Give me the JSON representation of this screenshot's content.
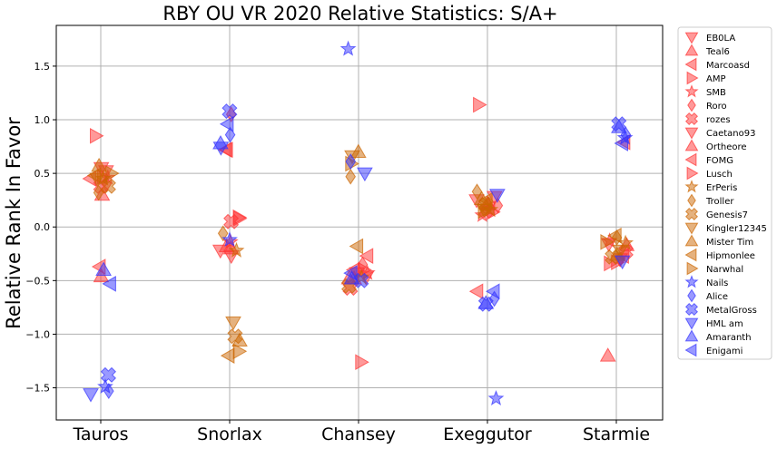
{
  "chart_data": {
    "type": "scatter",
    "title": "RBY OU VR 2020 Relative Statistics: S/A+",
    "xlabel": "",
    "ylabel": "Relative Rank In Favor",
    "categories": [
      "Tauros",
      "Snorlax",
      "Chansey",
      "Exeggutor",
      "Starmie"
    ],
    "ylim": [
      -1.8,
      1.88
    ],
    "yticks": [
      -1.5,
      -1.0,
      -0.5,
      0.0,
      0.5,
      1.0,
      1.5
    ],
    "ytick_labels": [
      "−1.5",
      "−1.0",
      "−0.5",
      "0.0",
      "0.5",
      "1.0",
      "1.5"
    ],
    "grid": true,
    "legend_position": "outside-right",
    "colors": {
      "red": "#ff3333",
      "orange": "#cc6600",
      "blue": "#3333ff"
    },
    "series": [
      {
        "name": "EB0LA",
        "color": "red",
        "marker": "tri-down",
        "values": [
          0.52,
          -0.22,
          -0.43,
          0.28,
          -0.16
        ]
      },
      {
        "name": "Teal6",
        "color": "red",
        "marker": "tri-up",
        "values": [
          0.3,
          -0.18,
          -0.48,
          0.21,
          -1.2
        ]
      },
      {
        "name": "Marcoasd",
        "color": "red",
        "marker": "tri-left",
        "values": [
          -0.37,
          0.72,
          -0.27,
          -0.6,
          -0.27
        ]
      },
      {
        "name": "AMP",
        "color": "red",
        "marker": "tri-right",
        "values": [
          0.85,
          0.08,
          -1.26,
          1.14,
          -0.34
        ]
      },
      {
        "name": "SMB",
        "color": "red",
        "marker": "star",
        "values": [
          0.46,
          -0.14,
          -0.43,
          0.11,
          -0.13
        ]
      },
      {
        "name": "Roro",
        "color": "red",
        "marker": "diamond",
        "values": [
          0.4,
          1.05,
          -0.35,
          0.2,
          -0.3
        ]
      },
      {
        "name": "rozes",
        "color": "red",
        "marker": "cross",
        "values": [
          0.38,
          0.05,
          -0.57,
          0.15,
          -0.23
        ]
      },
      {
        "name": "Caetano93",
        "color": "red",
        "marker": "tri-down",
        "values": [
          0.55,
          -0.27,
          -0.47,
          0.25,
          -0.3
        ]
      },
      {
        "name": "Ortheore",
        "color": "red",
        "marker": "tri-up",
        "values": [
          -0.46,
          -0.2,
          -0.48,
          0.22,
          -0.17
        ]
      },
      {
        "name": "FOMG",
        "color": "red",
        "marker": "tri-left",
        "values": [
          0.45,
          0.72,
          -0.4,
          0.17,
          0.79
        ]
      },
      {
        "name": "Lusch",
        "color": "red",
        "marker": "tri-right",
        "values": [
          0.47,
          0.09,
          -0.4,
          0.14,
          -0.33
        ]
      },
      {
        "name": "ErPeris",
        "color": "orange",
        "marker": "star",
        "values": [
          0.45,
          -0.22,
          -0.47,
          0.16,
          -0.15
        ]
      },
      {
        "name": "Troller",
        "color": "orange",
        "marker": "diamond",
        "values": [
          0.32,
          -0.06,
          0.47,
          0.33,
          -0.1
        ]
      },
      {
        "name": "Genesis7",
        "color": "orange",
        "marker": "cross",
        "values": [
          0.38,
          -1.02,
          -0.55,
          0.21,
          -0.28
        ]
      },
      {
        "name": "Kingler12345",
        "color": "orange",
        "marker": "tri-down",
        "values": [
          0.45,
          -0.89,
          0.66,
          0.16,
          -0.22
        ]
      },
      {
        "name": "Mister Tim",
        "color": "orange",
        "marker": "tri-up",
        "values": [
          0.57,
          -1.06,
          0.7,
          0.26,
          -0.26
        ]
      },
      {
        "name": "Hipmonlee",
        "color": "orange",
        "marker": "tri-left",
        "values": [
          0.48,
          -1.2,
          -0.18,
          0.25,
          -0.08
        ]
      },
      {
        "name": "Narwhal",
        "color": "orange",
        "marker": "tri-right",
        "values": [
          0.5,
          -1.16,
          0.59,
          0.15,
          -0.14
        ]
      },
      {
        "name": "Nails",
        "color": "blue",
        "marker": "star",
        "values": [
          -1.49,
          -0.12,
          1.66,
          -1.6,
          0.83
        ]
      },
      {
        "name": "Alice",
        "color": "blue",
        "marker": "diamond",
        "values": [
          -1.53,
          0.86,
          0.61,
          -0.67,
          0.86
        ]
      },
      {
        "name": "MetalGross",
        "color": "blue",
        "marker": "cross",
        "values": [
          -1.38,
          1.08,
          -0.5,
          -0.72,
          0.96
        ]
      },
      {
        "name": "HML am",
        "color": "blue",
        "marker": "tri-down",
        "values": [
          -1.56,
          0.74,
          0.5,
          0.3,
          -0.32
        ]
      },
      {
        "name": "Amaranth",
        "color": "blue",
        "marker": "tri-up",
        "values": [
          -0.4,
          0.78,
          -0.48,
          -0.71,
          0.93
        ]
      },
      {
        "name": "Enigami",
        "color": "blue",
        "marker": "tri-left",
        "values": [
          -0.53,
          0.96,
          -0.43,
          -0.6,
          0.78
        ]
      }
    ]
  }
}
